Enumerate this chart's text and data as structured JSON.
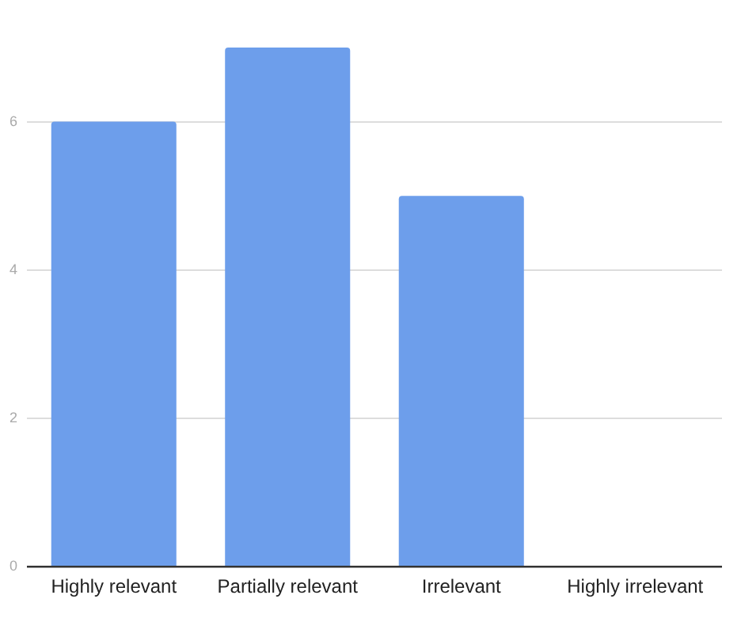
{
  "chart_data": {
    "type": "bar",
    "categories": [
      "Highly relevant",
      "Partially relevant",
      "Irrelevant",
      "Highly irrelevant"
    ],
    "values": [
      6,
      7,
      5,
      0
    ],
    "color": "#6d9eeb",
    "ylim": [
      0,
      7
    ],
    "yticks": [
      0,
      2,
      4,
      6
    ],
    "grid": "y",
    "legend": false
  }
}
